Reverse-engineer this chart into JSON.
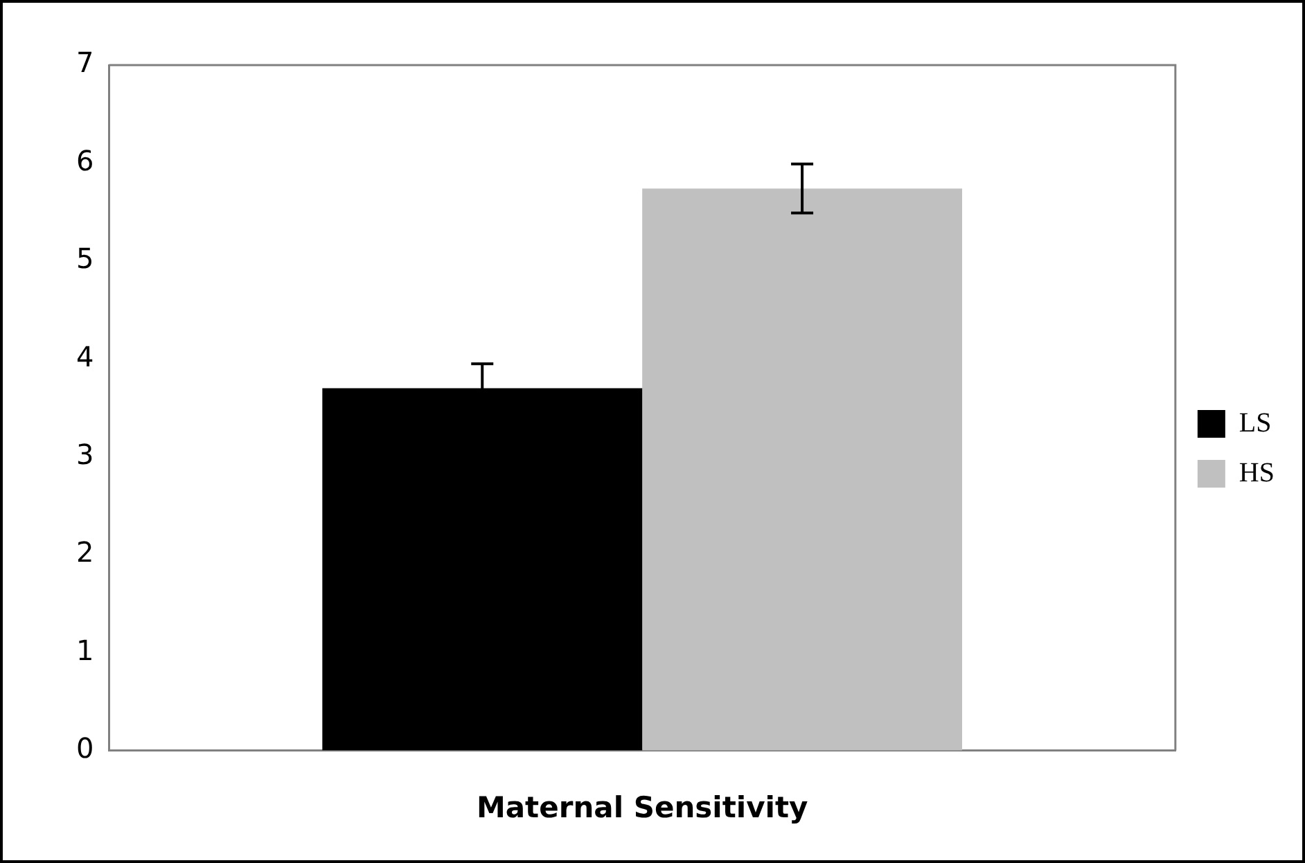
{
  "chart_data": {
    "type": "bar",
    "xlabel": "Maternal Sensitivity",
    "categories": [
      null
    ],
    "series": [
      {
        "name": "LS",
        "color": "#000000",
        "values": [
          3.7
        ],
        "errors": [
          0.25
        ]
      },
      {
        "name": "HS",
        "color": "#c0c0c0",
        "values": [
          5.74
        ],
        "errors": [
          0.25
        ]
      }
    ],
    "ylim": [
      0,
      7
    ],
    "yticks": [
      0,
      1,
      2,
      3,
      4,
      5,
      6,
      7
    ],
    "grid": false,
    "legend": "right"
  }
}
